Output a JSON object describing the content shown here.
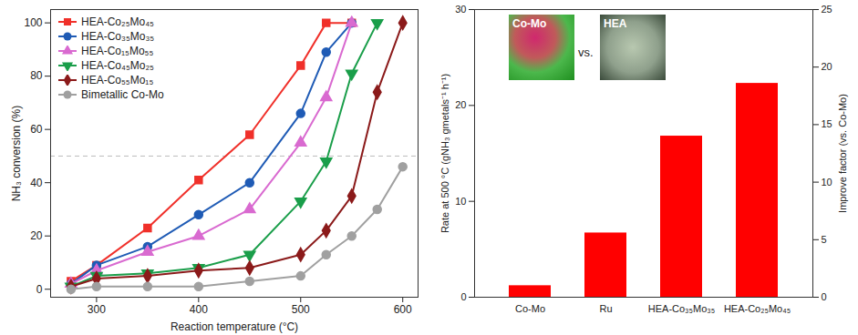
{
  "chart_data": [
    {
      "type": "line",
      "x_label": "Reaction temperature (°C)",
      "y_label": "NH₃ conversion (%)",
      "x": [
        275,
        300,
        350,
        400,
        450,
        500,
        525,
        550,
        575,
        600
      ],
      "xlim": [
        255,
        615
      ],
      "xticks": [
        300,
        400,
        500,
        600
      ],
      "ylim": [
        -3,
        105
      ],
      "yticks": [
        0,
        20,
        40,
        60,
        80,
        100
      ],
      "legend": "top-left",
      "reference_lines": [
        50
      ],
      "series": [
        {
          "name": "HEA-Co₂₅Mo₄₅",
          "color": "#f0302a",
          "marker": "square",
          "values": [
            3,
            9,
            23,
            41,
            58,
            84,
            100,
            100,
            null,
            null
          ]
        },
        {
          "name": "HEA-Co₃₅Mo₃₅",
          "color": "#1f5bb5",
          "marker": "circle",
          "values": [
            2,
            9,
            16,
            28,
            40,
            66,
            89,
            100,
            null,
            null
          ]
        },
        {
          "name": "HEA-Co₁₅Mo₅₅",
          "color": "#d96ad0",
          "marker": "triangle",
          "values": [
            2,
            7,
            14,
            20,
            30,
            55,
            72,
            100,
            null,
            null
          ]
        },
        {
          "name": "HEA-Co₄₅Mo₂₅",
          "color": "#1a9e4a",
          "marker": "triangle-down",
          "values": [
            1,
            5,
            6,
            8,
            13,
            33,
            48,
            81,
            100,
            null
          ]
        },
        {
          "name": "HEA-Co₅₅Mo₁₅",
          "color": "#8b1a1a",
          "marker": "diamond",
          "values": [
            1,
            4,
            5,
            7,
            8,
            13,
            22,
            35,
            74,
            100
          ]
        },
        {
          "name": "Bimetallic Co-Mo",
          "color": "#a0a0a0",
          "marker": "circle",
          "values": [
            0,
            1,
            1,
            1,
            3,
            5,
            13,
            20,
            30,
            46
          ]
        }
      ]
    },
    {
      "type": "bar",
      "categories": [
        "Co-Mo",
        "Ru",
        "HEA-Co₃₅Mo₃₅",
        "HEA-Co₂₅Mo₄₅"
      ],
      "values": [
        1.2,
        6.7,
        16.8,
        22.3
      ],
      "color": "#ff0000",
      "y_label": "Rate at 500 °C (gNH₃ gmetals⁻¹ h⁻¹)",
      "ylim": [
        0,
        30
      ],
      "yticks": [
        0,
        10,
        20,
        30
      ],
      "y2_label": "Improve factor (vs. Co-Mo)",
      "y2lim": [
        0,
        25
      ],
      "y2ticks": [
        0,
        5,
        10,
        15,
        20,
        25
      ],
      "annotations": [
        "Co-Mo",
        "vs.",
        "HEA"
      ]
    }
  ]
}
